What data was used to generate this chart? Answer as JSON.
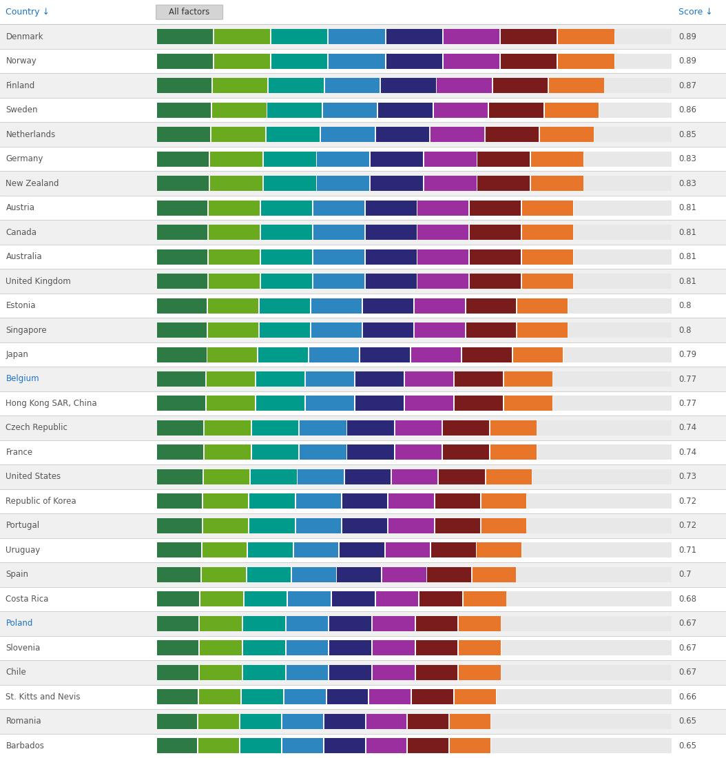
{
  "countries": [
    "Denmark",
    "Norway",
    "Finland",
    "Sweden",
    "Netherlands",
    "Germany",
    "New Zealand",
    "Austria",
    "Canada",
    "Australia",
    "United Kingdom",
    "Estonia",
    "Singapore",
    "Japan",
    "Belgium",
    "Hong Kong SAR, China",
    "Czech Republic",
    "France",
    "United States",
    "Republic of Korea",
    "Portugal",
    "Uruguay",
    "Spain",
    "Costa Rica",
    "Poland",
    "Slovenia",
    "Chile",
    "St. Kitts and Nevis",
    "Romania",
    "Barbados"
  ],
  "scores": [
    0.89,
    0.89,
    0.87,
    0.86,
    0.85,
    0.83,
    0.83,
    0.81,
    0.81,
    0.81,
    0.81,
    0.8,
    0.8,
    0.79,
    0.77,
    0.77,
    0.74,
    0.74,
    0.73,
    0.72,
    0.72,
    0.71,
    0.7,
    0.68,
    0.67,
    0.67,
    0.67,
    0.66,
    0.65,
    0.65
  ],
  "segment_colors": [
    "#2d7a45",
    "#6aaa1e",
    "#009b8b",
    "#2e86c1",
    "#2c2878",
    "#9b2fa0",
    "#7b1c1c",
    "#e8762a"
  ],
  "num_segments": 8,
  "fig_bg": "#ffffff",
  "row_even_bg": "#f0f0f0",
  "row_odd_bg": "#ffffff",
  "header_bg": "#ffffff",
  "header_color": "#1a73c8",
  "country_normal_color": "#555555",
  "score_color": "#555555",
  "separator_color": "#c8c8c8",
  "title_text": "Country ↓",
  "all_factors_text": "All factors",
  "score_text": "Score ↓",
  "max_bar_value": 1.0,
  "highlighted_countries": [
    "Belgium",
    "Poland"
  ],
  "highlight_color": "#1a73c8",
  "btn_facecolor": "#d4d4d4",
  "btn_edgecolor": "#bbbbbb",
  "grey_bar_color": "#e8e8e8"
}
